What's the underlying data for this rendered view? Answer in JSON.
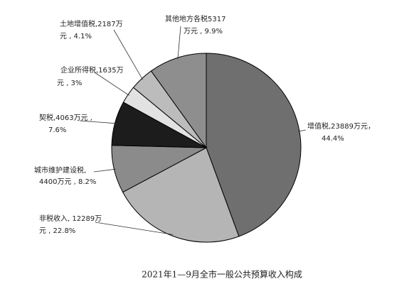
{
  "chart_data": {
    "type": "pie",
    "title": "2021年1—9月全市一般公共预算收入构成",
    "values": [
      44.4,
      22.8,
      8.2,
      7.6,
      3,
      4.1,
      9.9
    ],
    "value_labels": [
      [
        "增值税,23889万元，",
        "44.4%"
      ],
      [
        "非税收入, 12289万",
        "元 , 22.8%"
      ],
      [
        "城市维护建设税,",
        "4400万元 , 8.2%"
      ],
      [
        "契税,4063万元 ,",
        "7.6%"
      ],
      [
        "企业所得税,1635万",
        "元 , 3%"
      ],
      [
        "土地增值税,2187万",
        "元 , 4.1%"
      ],
      [
        "其他地方各税5317",
        "万元 , 9.9%"
      ]
    ],
    "colors": [
      "#6f6f6f",
      "#b5b5b5",
      "#8b8b8b",
      "#1c1c1c",
      "#e2e2e2",
      "#bcbcbc",
      "#8e8e8e"
    ]
  }
}
